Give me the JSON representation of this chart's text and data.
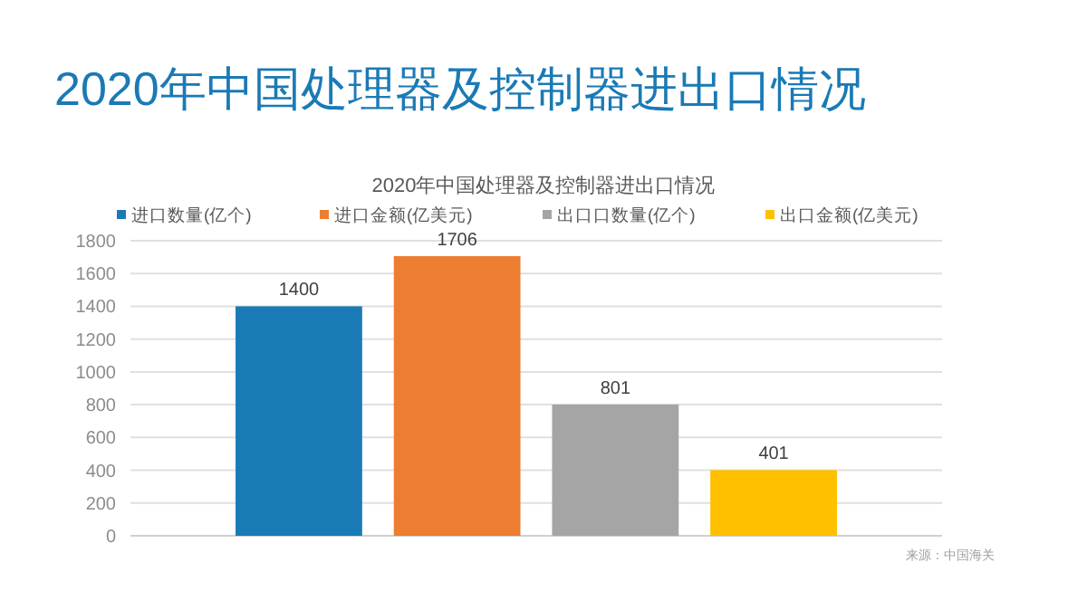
{
  "chart_data": {
    "type": "bar",
    "title": "2020年中国处理器及控制器进出口情况",
    "subtitle": "2020年中国处理器及控制器进出口情况",
    "categories": [
      null
    ],
    "series": [
      {
        "name": "进口数量(亿个)",
        "color": "#1a7ab5",
        "values": [
          1400
        ]
      },
      {
        "name": "进口金额(亿美元)",
        "color": "#ed7d31",
        "values": [
          1706
        ]
      },
      {
        "name": "出口口数量(亿个)",
        "color": "#a5a5a5",
        "values": [
          801
        ]
      },
      {
        "name": "出口金额(亿美元)",
        "color": "#ffc000",
        "values": [
          401
        ]
      }
    ],
    "ylim": [
      0,
      1800
    ],
    "yticks": [
      0,
      200,
      400,
      600,
      800,
      1000,
      1200,
      1400,
      1600,
      1800
    ],
    "grid": "y",
    "legend": "top",
    "data_labels": true,
    "annotations": [
      "来源：中国海关"
    ]
  }
}
